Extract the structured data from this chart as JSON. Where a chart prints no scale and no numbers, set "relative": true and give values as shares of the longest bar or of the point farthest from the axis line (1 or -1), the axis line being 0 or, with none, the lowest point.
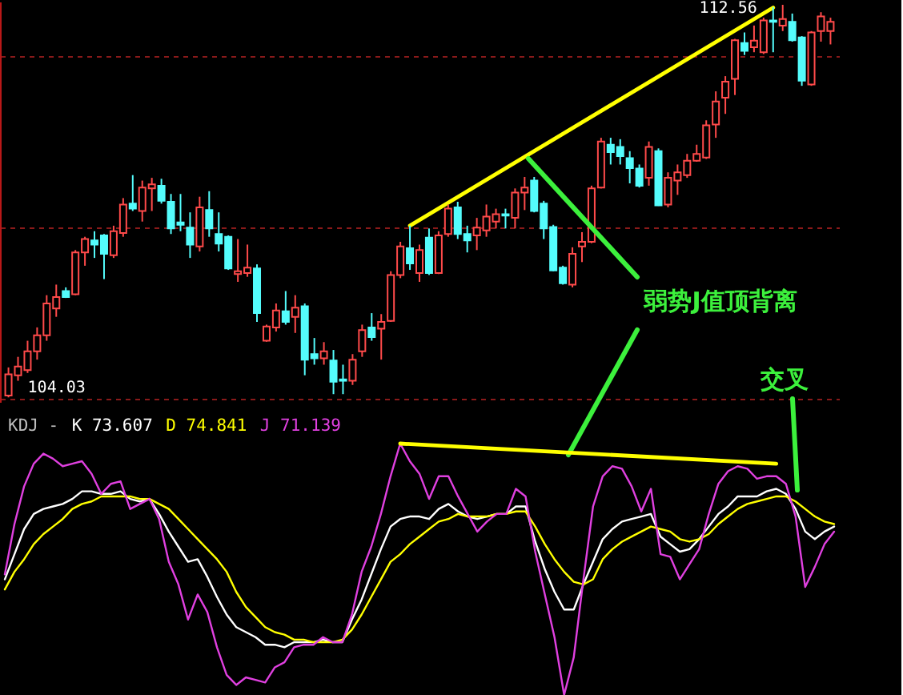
{
  "chart_data": [
    {
      "type": "candlestick",
      "categories": [
        null,
        null,
        null,
        null,
        null,
        null,
        null,
        null,
        null,
        null,
        null,
        null,
        null,
        null,
        null,
        null,
        null,
        null,
        null,
        null,
        null,
        null,
        null,
        null,
        null,
        null,
        null,
        null,
        null,
        null,
        null,
        null,
        null,
        null,
        null,
        null,
        null,
        null,
        null,
        null,
        null,
        null,
        null,
        null,
        null,
        null,
        null,
        null,
        null,
        null,
        null,
        null,
        null,
        null,
        null,
        null,
        null,
        null,
        null,
        null,
        null,
        null,
        null,
        null,
        null,
        null,
        null,
        null,
        null,
        null,
        null,
        null,
        null,
        null,
        null,
        null,
        null,
        null,
        null,
        null,
        null,
        null,
        null,
        null,
        null,
        null,
        null
      ],
      "ohlc": [
        [
          104.07,
          104.68,
          104.03,
          104.53
        ],
        [
          104.51,
          104.91,
          104.39,
          104.7
        ],
        [
          104.62,
          105.26,
          104.56,
          105.03
        ],
        [
          105.03,
          105.55,
          104.85,
          105.38
        ],
        [
          105.38,
          106.25,
          105.26,
          106.07
        ],
        [
          105.96,
          106.48,
          105.78,
          106.21
        ],
        [
          106.34,
          106.42,
          106.19,
          106.21
        ],
        [
          106.27,
          107.23,
          106.25,
          107.18
        ],
        [
          107.18,
          107.52,
          106.89,
          107.47
        ],
        [
          107.44,
          107.64,
          107.06,
          107.35
        ],
        [
          107.55,
          107.58,
          106.6,
          107.15
        ],
        [
          107.12,
          107.76,
          107.06,
          107.64
        ],
        [
          107.6,
          108.36,
          107.52,
          108.22
        ],
        [
          108.24,
          108.86,
          108.08,
          108.13
        ],
        [
          108.08,
          108.74,
          107.85,
          108.59
        ],
        [
          108.57,
          108.8,
          108.08,
          108.66
        ],
        [
          108.63,
          108.78,
          108.24,
          108.3
        ],
        [
          108.28,
          108.45,
          107.58,
          107.7
        ],
        [
          107.83,
          108.45,
          107.64,
          107.78
        ],
        [
          107.72,
          108.05,
          107.06,
          107.35
        ],
        [
          107.31,
          108.39,
          107.2,
          108.16
        ],
        [
          108.1,
          108.51,
          107.52,
          107.7
        ],
        [
          107.58,
          108.05,
          107.2,
          107.37
        ],
        [
          107.52,
          107.55,
          106.8,
          106.83
        ],
        [
          106.71,
          107.47,
          106.54,
          106.77
        ],
        [
          106.73,
          107.35,
          106.65,
          106.85
        ],
        [
          106.83,
          106.92,
          105.67,
          105.86
        ],
        [
          105.26,
          105.61,
          105.24,
          105.57
        ],
        [
          105.55,
          106.07,
          105.46,
          105.92
        ],
        [
          105.9,
          106.34,
          105.61,
          105.67
        ],
        [
          105.78,
          106.25,
          105.43,
          105.98
        ],
        [
          106.01,
          106.07,
          104.51,
          104.85
        ],
        [
          104.97,
          105.32,
          104.74,
          104.88
        ],
        [
          104.88,
          105.23,
          104.74,
          105.03
        ],
        [
          104.83,
          105.06,
          104.1,
          104.37
        ],
        [
          104.42,
          104.74,
          104.1,
          104.39
        ],
        [
          104.39,
          104.97,
          104.3,
          104.85
        ],
        [
          105.03,
          105.61,
          104.91,
          105.49
        ],
        [
          105.55,
          105.86,
          105.26,
          105.34
        ],
        [
          105.52,
          105.84,
          104.85,
          105.67
        ],
        [
          105.69,
          106.77,
          105.67,
          106.69
        ],
        [
          106.69,
          107.41,
          106.62,
          107.31
        ],
        [
          107.27,
          107.76,
          106.8,
          106.94
        ],
        [
          106.73,
          107.35,
          106.54,
          107.23
        ],
        [
          107.5,
          107.7,
          106.69,
          106.73
        ],
        [
          106.73,
          107.64,
          106.71,
          107.55
        ],
        [
          107.58,
          108.22,
          107.52,
          108.13
        ],
        [
          108.16,
          108.28,
          107.47,
          107.58
        ],
        [
          107.58,
          107.76,
          107.18,
          107.44
        ],
        [
          107.55,
          107.93,
          107.23,
          107.72
        ],
        [
          107.66,
          108.22,
          107.52,
          107.96
        ],
        [
          107.85,
          108.13,
          107.7,
          108.01
        ],
        [
          108.01,
          108.13,
          107.7,
          107.98
        ],
        [
          107.93,
          108.57,
          107.7,
          108.48
        ],
        [
          108.48,
          108.82,
          108.1,
          108.59
        ],
        [
          108.74,
          108.82,
          108.05,
          108.08
        ],
        [
          108.24,
          108.3,
          107.47,
          107.7
        ],
        [
          107.73,
          107.78,
          106.77,
          106.79
        ],
        [
          106.85,
          106.89,
          106.48,
          106.51
        ],
        [
          106.48,
          107.29,
          106.42,
          107.15
        ],
        [
          107.31,
          107.62,
          106.97,
          107.41
        ],
        [
          107.41,
          108.63,
          107.38,
          108.57
        ],
        [
          108.59,
          109.67,
          108.57,
          109.59
        ],
        [
          109.52,
          109.67,
          109.09,
          109.36
        ],
        [
          109.47,
          109.64,
          109.09,
          109.27
        ],
        [
          109.23,
          109.38,
          108.68,
          109.01
        ],
        [
          109.0,
          109.09,
          108.59,
          108.63
        ],
        [
          108.8,
          109.59,
          108.63,
          109.47
        ],
        [
          109.38,
          109.44,
          108.19,
          108.2
        ],
        [
          108.22,
          108.92,
          108.16,
          108.8
        ],
        [
          108.74,
          109.09,
          108.43,
          108.92
        ],
        [
          108.86,
          109.32,
          108.8,
          109.17
        ],
        [
          109.17,
          109.52,
          109.15,
          109.32
        ],
        [
          109.24,
          110.05,
          109.21,
          109.94
        ],
        [
          109.96,
          110.68,
          109.67,
          110.46
        ],
        [
          110.54,
          111.01,
          110.19,
          110.89
        ],
        [
          110.95,
          111.82,
          110.6,
          111.79
        ],
        [
          111.73,
          111.96,
          111.47,
          111.56
        ],
        [
          111.64,
          112.11,
          111.53,
          111.78
        ],
        [
          111.53,
          112.28,
          111.49,
          112.22
        ],
        [
          112.22,
          112.51,
          111.53,
          112.19
        ],
        [
          112.11,
          112.56,
          111.99,
          112.25
        ],
        [
          112.19,
          112.37,
          111.76,
          111.79
        ],
        [
          111.85,
          111.88,
          110.8,
          110.91
        ],
        [
          110.83,
          111.99,
          110.8,
          111.96
        ],
        [
          111.99,
          112.4,
          111.76,
          112.31
        ],
        [
          111.99,
          112.28,
          111.7,
          112.19
        ]
      ],
      "colors": [
        "#ff4a4a",
        "#ff4a4a",
        "#ff4a4a",
        "#ff4a4a",
        "#ff4a4a",
        "#ff4a4a",
        "#54fcfc",
        "#ff4a4a",
        "#ff4a4a",
        "#54fcfc",
        "#54fcfc",
        "#ff4a4a",
        "#ff4a4a",
        "#54fcfc",
        "#ff4a4a",
        "#ff4a4a",
        "#54fcfc",
        "#54fcfc",
        "#54fcfc",
        "#54fcfc",
        "#ff4a4a",
        "#54fcfc",
        "#54fcfc",
        "#54fcfc",
        "#ff4a4a",
        "#ff4a4a",
        "#54fcfc",
        "#ff4a4a",
        "#ff4a4a",
        "#54fcfc",
        "#ff4a4a",
        "#54fcfc",
        "#54fcfc",
        "#ff4a4a",
        "#54fcfc",
        "#54fcfc",
        "#ff4a4a",
        "#ff4a4a",
        "#54fcfc",
        "#ff4a4a",
        "#ff4a4a",
        "#ff4a4a",
        "#54fcfc",
        "#ff4a4a",
        "#54fcfc",
        "#ff4a4a",
        "#ff4a4a",
        "#54fcfc",
        "#54fcfc",
        "#ff4a4a",
        "#ff4a4a",
        "#ff4a4a",
        "#54fcfc",
        "#ff4a4a",
        "#ff4a4a",
        "#54fcfc",
        "#54fcfc",
        "#54fcfc",
        "#54fcfc",
        "#ff4a4a",
        "#ff4a4a",
        "#ff4a4a",
        "#ff4a4a",
        "#54fcfc",
        "#54fcfc",
        "#54fcfc",
        "#54fcfc",
        "#ff4a4a",
        "#54fcfc",
        "#ff4a4a",
        "#ff4a4a",
        "#ff4a4a",
        "#ff4a4a",
        "#ff4a4a",
        "#ff4a4a",
        "#ff4a4a",
        "#ff4a4a",
        "#54fcfc",
        "#ff4a4a",
        "#ff4a4a",
        "#54fcfc",
        "#ff4a4a",
        "#54fcfc",
        "#54fcfc",
        "#ff4a4a",
        "#ff4a4a",
        "#ff4a4a"
      ],
      "series": [
        {
          "type": "line",
          "color": "#ffff00",
          "values": [
            null,
            null,
            null,
            null,
            null,
            null,
            null,
            null,
            null,
            null,
            null,
            null,
            null,
            null,
            null,
            null,
            null,
            null,
            null,
            null,
            null,
            null,
            null,
            null,
            null,
            null,
            null,
            null,
            null,
            null,
            null,
            null,
            null,
            null,
            null,
            null,
            null,
            null,
            null,
            null,
            null,
            null,
            107.76,
            null,
            null,
            null,
            null,
            null,
            null,
            null,
            null,
            null,
            null,
            null,
            null,
            null,
            null,
            null,
            null,
            null,
            null,
            null,
            null,
            null,
            null,
            null,
            null,
            null,
            null,
            null,
            null,
            null,
            null,
            null,
            null,
            null,
            null,
            null,
            null,
            null,
            112.5,
            null,
            null,
            null,
            null,
            null,
            null
          ]
        }
      ],
      "ylim": [
        103.93,
        112.63
      ],
      "yticks": [
        {
          "value": 103.99,
          "label": null
        },
        {
          "value": 107.72,
          "label": null
        },
        {
          "value": 111.45,
          "label": null
        }
      ],
      "grid": "y",
      "tick_labels": false,
      "annotations": [
        "112.56",
        "104.03",
        "弱势J值顶背离",
        "交叉"
      ]
    },
    {
      "type": "line",
      "relative": true,
      "categories": [
        null,
        null,
        null,
        null,
        null,
        null,
        null,
        null,
        null,
        null,
        null,
        null,
        null,
        null,
        null,
        null,
        null,
        null,
        null,
        null,
        null,
        null,
        null,
        null,
        null,
        null,
        null,
        null,
        null,
        null,
        null,
        null,
        null,
        null,
        null,
        null,
        null,
        null,
        null,
        null,
        null,
        null,
        null,
        null,
        null,
        null,
        null,
        null,
        null,
        null,
        null,
        null,
        null,
        null,
        null,
        null,
        null,
        null,
        null,
        null,
        null,
        null,
        null,
        null,
        null,
        null,
        null,
        null,
        null,
        null,
        null,
        null,
        null,
        null,
        null,
        null,
        null,
        null,
        null,
        null,
        null,
        null,
        null,
        null,
        null,
        null,
        null
      ],
      "legend_title": "KDJ -",
      "legend": "top left",
      "tick_labels": false,
      "series": [
        {
          "name": "K 73.607",
          "color": "#ffffff",
          "values": [
            0.46,
            0.56,
            0.66,
            0.72,
            0.74,
            0.75,
            0.76,
            0.78,
            0.81,
            0.81,
            0.8,
            0.8,
            0.81,
            0.78,
            0.77,
            0.78,
            0.72,
            0.65,
            0.59,
            0.53,
            0.54,
            0.47,
            0.39,
            0.32,
            0.27,
            0.25,
            0.23,
            0.2,
            0.2,
            0.19,
            0.21,
            0.21,
            0.21,
            0.22,
            0.21,
            0.21,
            0.3,
            0.38,
            0.48,
            0.58,
            0.67,
            0.7,
            0.71,
            0.71,
            0.7,
            0.74,
            0.76,
            0.73,
            0.71,
            0.7,
            0.71,
            0.72,
            0.72,
            0.75,
            0.75,
            0.61,
            0.5,
            0.41,
            0.34,
            0.34,
            0.44,
            0.53,
            0.62,
            0.66,
            0.69,
            0.7,
            0.71,
            0.72,
            0.63,
            0.6,
            0.57,
            0.58,
            0.62,
            0.67,
            0.72,
            0.75,
            0.79,
            0.79,
            0.79,
            0.81,
            0.82,
            0.8,
            0.74,
            0.65,
            0.62,
            0.65,
            0.67
          ]
        },
        {
          "name": "D 74.841",
          "color": "#ffff00",
          "values": [
            0.42,
            0.49,
            0.54,
            0.6,
            0.64,
            0.67,
            0.7,
            0.74,
            0.76,
            0.77,
            0.79,
            0.79,
            0.79,
            0.79,
            0.78,
            0.78,
            0.76,
            0.74,
            0.7,
            0.66,
            0.62,
            0.58,
            0.54,
            0.49,
            0.41,
            0.35,
            0.31,
            0.27,
            0.25,
            0.24,
            0.22,
            0.22,
            0.21,
            0.21,
            0.21,
            0.22,
            0.26,
            0.32,
            0.39,
            0.46,
            0.53,
            0.56,
            0.6,
            0.63,
            0.66,
            0.69,
            0.7,
            0.72,
            0.71,
            0.71,
            0.71,
            0.72,
            0.72,
            0.73,
            0.73,
            0.67,
            0.6,
            0.54,
            0.49,
            0.45,
            0.44,
            0.46,
            0.54,
            0.58,
            0.61,
            0.63,
            0.65,
            0.67,
            0.66,
            0.65,
            0.62,
            0.61,
            0.62,
            0.64,
            0.68,
            0.71,
            0.74,
            0.76,
            0.77,
            0.78,
            0.79,
            0.79,
            0.77,
            0.74,
            0.71,
            0.69,
            0.68
          ]
        },
        {
          "name": "J 71.139",
          "color": "#e040e0",
          "values": [
            0.48,
            0.68,
            0.83,
            0.92,
            0.96,
            0.94,
            0.91,
            0.92,
            0.93,
            0.88,
            0.8,
            0.84,
            0.85,
            0.74,
            0.76,
            0.78,
            0.7,
            0.53,
            0.44,
            0.3,
            0.4,
            0.33,
            0.19,
            0.08,
            0.04,
            0.07,
            0.06,
            0.05,
            0.11,
            0.13,
            0.19,
            0.2,
            0.2,
            0.23,
            0.21,
            0.21,
            0.32,
            0.49,
            0.59,
            0.72,
            0.87,
            1.0,
            0.93,
            0.88,
            0.78,
            0.87,
            0.87,
            0.79,
            0.72,
            0.65,
            0.69,
            0.72,
            0.72,
            0.82,
            0.79,
            0.57,
            0.4,
            0.23,
            0,
            0.15,
            0.46,
            0.75,
            0.87,
            0.91,
            0.9,
            0.83,
            0.73,
            0.82,
            0.56,
            0.55,
            0.46,
            0.52,
            0.58,
            0.72,
            0.84,
            0.89,
            0.91,
            0.9,
            0.86,
            0.87,
            0.87,
            0.84,
            0.71,
            0.43,
            0.51,
            0.6,
            0.65
          ]
        },
        {
          "color": "#ffff00",
          "values": [
            null,
            null,
            null,
            null,
            null,
            null,
            null,
            null,
            null,
            null,
            null,
            null,
            null,
            null,
            null,
            null,
            null,
            null,
            null,
            null,
            null,
            null,
            null,
            null,
            null,
            null,
            null,
            null,
            null,
            null,
            null,
            null,
            null,
            null,
            null,
            null,
            null,
            null,
            null,
            null,
            null,
            1.0,
            null,
            null,
            null,
            null,
            null,
            null,
            null,
            null,
            null,
            null,
            null,
            null,
            null,
            null,
            null,
            null,
            null,
            null,
            null,
            null,
            null,
            null,
            null,
            null,
            null,
            null,
            null,
            null,
            null,
            null,
            null,
            null,
            null,
            null,
            null,
            null,
            null,
            null,
            0.92,
            null,
            null,
            null,
            null,
            null,
            null
          ]
        }
      ]
    }
  ]
}
